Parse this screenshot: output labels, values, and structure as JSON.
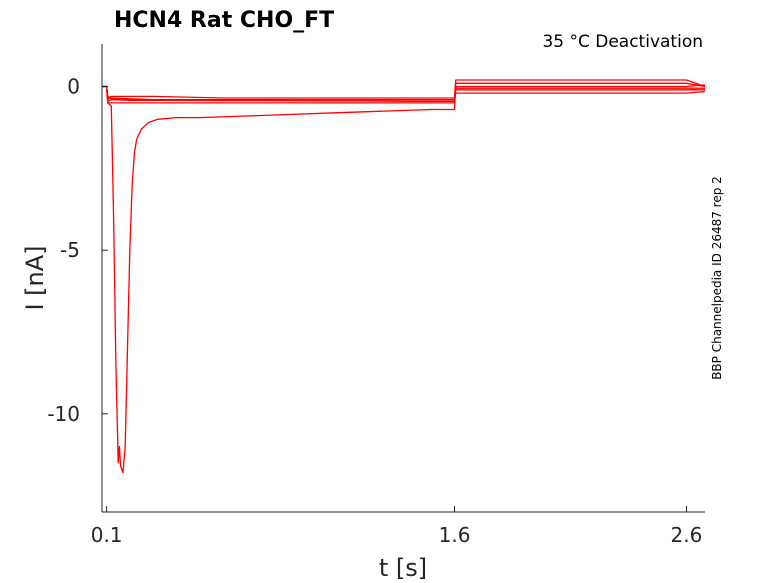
{
  "title": "HCN4  Rat  CHO_FT",
  "condition": "35 °C  Deactivation",
  "side_label": "BBP Channelpedia ID 26487 rep 2",
  "colors": {
    "trace": "#ff0000",
    "axis": "#262626"
  },
  "chart_data": {
    "type": "line",
    "xlabel": "t [s]",
    "ylabel": "I [nA]",
    "xlim": [
      0.08,
      2.68
    ],
    "ylim": [
      -13,
      1.3
    ],
    "x_ticks": [
      0.1,
      1.6,
      2.6
    ],
    "x_tick_labels": [
      "0.1",
      "1.6",
      "2.6"
    ],
    "y_ticks": [
      0,
      -5,
      -10
    ],
    "y_tick_labels": [
      "0",
      "-5",
      "-10"
    ],
    "grid": false,
    "legend": "none",
    "series": [
      {
        "x": [
          0.08,
          0.1,
          0.105,
          0.12,
          0.2,
          0.4,
          0.6,
          0.8,
          1.0,
          1.2,
          1.4,
          1.6,
          1.605,
          1.8,
          2.0,
          2.2,
          2.4,
          2.6,
          2.68
        ],
        "y": [
          0.0,
          0.0,
          -0.45,
          -0.4,
          -0.42,
          -0.42,
          -0.43,
          -0.43,
          -0.44,
          -0.44,
          -0.45,
          -0.45,
          -0.05,
          -0.05,
          -0.05,
          -0.05,
          -0.05,
          -0.05,
          -0.05
        ]
      },
      {
        "x": [
          0.08,
          0.1,
          0.105,
          0.12,
          0.3,
          0.6,
          0.9,
          1.2,
          1.5,
          1.6,
          1.605,
          1.9,
          2.2,
          2.5,
          2.6,
          2.68
        ],
        "y": [
          0.0,
          0.0,
          -0.3,
          -0.35,
          -0.4,
          -0.4,
          -0.4,
          -0.4,
          -0.4,
          -0.4,
          0.1,
          0.1,
          0.1,
          0.1,
          0.1,
          0.0
        ]
      },
      {
        "x": [
          0.08,
          0.1,
          0.105,
          0.16,
          0.5,
          1.0,
          1.5,
          1.6,
          1.605,
          2.0,
          2.5,
          2.6,
          2.68
        ],
        "y": [
          0.0,
          0.0,
          -0.5,
          -0.5,
          -0.5,
          -0.5,
          -0.5,
          -0.5,
          -0.1,
          -0.1,
          -0.1,
          -0.1,
          -0.1
        ]
      },
      {
        "x": [
          0.08,
          0.1,
          0.105,
          0.12,
          0.3,
          0.6,
          0.9,
          1.2,
          1.5,
          1.6,
          1.605,
          1.9,
          2.2,
          2.5,
          2.6,
          2.68
        ],
        "y": [
          0.0,
          0.0,
          -0.4,
          -0.3,
          -0.3,
          -0.35,
          -0.35,
          -0.35,
          -0.35,
          -0.35,
          0.2,
          0.2,
          0.2,
          0.2,
          0.2,
          0.0
        ]
      },
      {
        "x": [
          0.08,
          0.1,
          0.105,
          0.16,
          0.5,
          1.0,
          1.5,
          1.6,
          1.605,
          2.0,
          2.5,
          2.6,
          2.68
        ],
        "y": [
          0.0,
          0.0,
          -0.35,
          -0.4,
          -0.4,
          -0.4,
          -0.4,
          -0.4,
          -0.2,
          -0.2,
          -0.2,
          -0.2,
          -0.15
        ]
      },
      {
        "x": [
          0.08,
          0.1,
          0.105,
          0.12,
          0.13,
          0.14,
          0.15,
          0.155,
          0.16,
          0.17,
          0.18,
          0.19,
          0.2,
          0.21,
          0.22,
          0.23,
          0.25,
          0.28,
          0.32,
          0.4,
          0.5,
          0.7,
          0.9,
          1.1,
          1.3,
          1.5,
          1.6,
          1.605,
          1.8,
          2.0,
          2.2,
          2.4,
          2.6,
          2.68
        ],
        "y": [
          0.0,
          0.0,
          -0.5,
          -0.6,
          -4.0,
          -8.5,
          -11.5,
          -11.0,
          -11.6,
          -11.8,
          -11.0,
          -8.0,
          -5.0,
          -3.0,
          -2.0,
          -1.6,
          -1.3,
          -1.1,
          -1.0,
          -0.95,
          -0.95,
          -0.9,
          -0.85,
          -0.8,
          -0.75,
          -0.7,
          -0.7,
          0.0,
          0.0,
          0.0,
          0.0,
          0.0,
          0.0,
          0.05
        ]
      }
    ]
  }
}
